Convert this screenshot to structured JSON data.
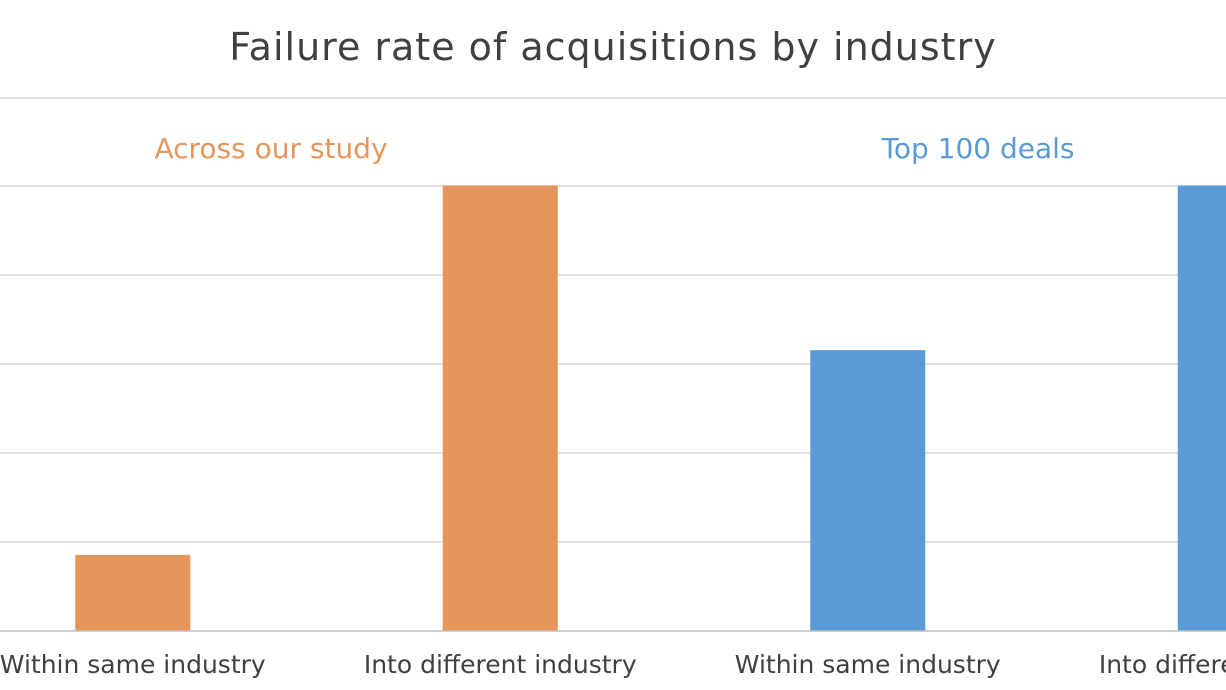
{
  "chart_data": {
    "type": "bar",
    "title": "Failure rate of acquisitions by industry",
    "xlabel": "",
    "ylabel": "",
    "grid": true,
    "groups": [
      {
        "label": "Across our study",
        "color": "#E6965C"
      },
      {
        "label": "Top 100 deals",
        "color": "#5B9BD5"
      }
    ],
    "categories": [
      "Within same industry",
      "Into different industry",
      "Within same industry",
      "Into different industry"
    ],
    "values": [
      0.17,
      1.0,
      0.63,
      1.0
    ],
    "bar_groups": [
      0,
      0,
      1,
      1
    ],
    "ylim": [
      0,
      1.0
    ]
  }
}
